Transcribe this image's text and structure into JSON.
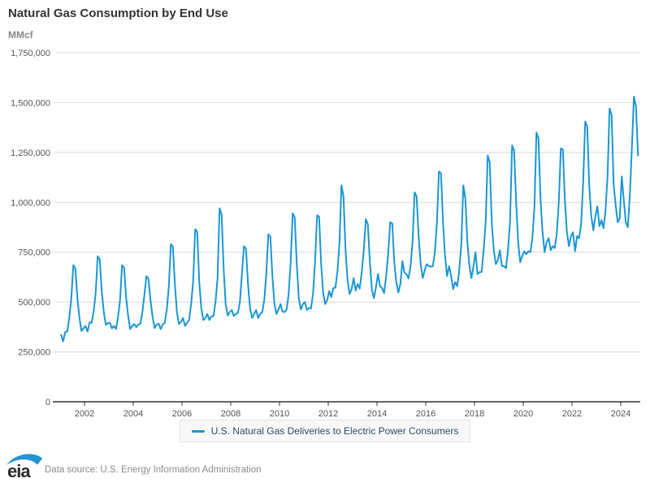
{
  "header": {
    "title": "Natural Gas Consumption by End Use",
    "units_label": "MMcf"
  },
  "legend": {
    "series_label": "U.S. Natural Gas Deliveries to Electric Power Consumers"
  },
  "footer": {
    "logo_text": "eia",
    "source_text": "Data source: U.S. Energy Information Administration"
  },
  "colors": {
    "series_line": "#1a96d4",
    "grid_line": "#d9d9d9",
    "zero_axis_line": "#333333",
    "tick_mark": "#333333",
    "tick_text": "#555555",
    "title_text": "#333333",
    "units_text": "#8a8a8a",
    "legend_text": "#32495e",
    "legend_bg": "#f8f8f8",
    "legend_border": "#e2e2e2",
    "logo_swoosh": "#2196d3",
    "logo_text_color": "#2b2b2b"
  },
  "chart_data": {
    "type": "line",
    "title": "Natural Gas Consumption by End Use",
    "xlabel": "",
    "ylabel": "MMcf",
    "ylim": [
      0,
      1750000
    ],
    "grid": true,
    "legend_position": "bottom",
    "y_ticks": [
      0,
      250000,
      500000,
      750000,
      1000000,
      1250000,
      1500000,
      1750000
    ],
    "y_tick_labels": [
      "0",
      "250,000",
      "500,000",
      "750,000",
      "1,000,000",
      "1,250,000",
      "1,500,000",
      "1,750,000"
    ],
    "x_tick_years": [
      2002,
      2004,
      2006,
      2008,
      2010,
      2012,
      2014,
      2016,
      2018,
      2020,
      2022,
      2024
    ],
    "x_tick_labels": [
      "2002",
      "2004",
      "2006",
      "2008",
      "2010",
      "2012",
      "2014",
      "2016",
      "2018",
      "2020",
      "2022",
      "2024"
    ],
    "x_range": {
      "start": "2001-01",
      "end": "2024-09",
      "frequency": "monthly"
    },
    "series": [
      {
        "name": "U.S. Natural Gas Deliveries to Electric Power Consumers",
        "color": "#1a96d4",
        "values": [
          335000,
          303000,
          350000,
          352000,
          420000,
          518000,
          685000,
          668000,
          520000,
          422000,
          355000,
          368000,
          380000,
          352000,
          398000,
          396000,
          452000,
          545000,
          730000,
          714000,
          552000,
          450000,
          385000,
          395000,
          396000,
          368000,
          380000,
          365000,
          424000,
          508000,
          685000,
          672000,
          520000,
          430000,
          365000,
          380000,
          390000,
          374000,
          388000,
          390000,
          448000,
          538000,
          630000,
          616000,
          508000,
          428000,
          370000,
          386000,
          392000,
          364000,
          388000,
          396000,
          460000,
          575000,
          790000,
          778000,
          590000,
          450000,
          390000,
          400000,
          420000,
          380000,
          396000,
          410000,
          490000,
          605000,
          865000,
          852000,
          600000,
          470000,
          410000,
          420000,
          440000,
          410000,
          428000,
          430000,
          500000,
          620000,
          970000,
          940000,
          668000,
          490000,
          432000,
          450000,
          460000,
          430000,
          440000,
          445000,
          500000,
          640000,
          780000,
          768000,
          590000,
          470000,
          420000,
          440000,
          460000,
          420000,
          440000,
          450000,
          510000,
          640000,
          840000,
          828000,
          630000,
          490000,
          440000,
          462000,
          490000,
          452000,
          450000,
          462000,
          540000,
          700000,
          945000,
          924000,
          690000,
          520000,
          462000,
          490000,
          500000,
          460000,
          470000,
          468000,
          540000,
          700000,
          935000,
          928000,
          690000,
          545000,
          490000,
          510000,
          555000,
          525000,
          570000,
          572000,
          650000,
          792000,
          1085000,
          1030000,
          762000,
          610000,
          540000,
          565000,
          620000,
          558000,
          590000,
          568000,
          650000,
          760000,
          915000,
          890000,
          700000,
          560000,
          520000,
          575000,
          640000,
          580000,
          570000,
          545000,
          630000,
          740000,
          900000,
          895000,
          700000,
          600000,
          548000,
          590000,
          705000,
          648000,
          640000,
          618000,
          680000,
          800000,
          1050000,
          1030000,
          830000,
          690000,
          620000,
          660000,
          690000,
          680000,
          678000,
          680000,
          750000,
          900000,
          1155000,
          1145000,
          900000,
          730000,
          630000,
          680000,
          630000,
          565000,
          600000,
          580000,
          660000,
          790000,
          1085000,
          1020000,
          800000,
          680000,
          620000,
          680000,
          750000,
          640000,
          650000,
          650000,
          760000,
          900000,
          1235000,
          1200000,
          900000,
          760000,
          690000,
          710000,
          760000,
          680000,
          680000,
          670000,
          760000,
          905000,
          1285000,
          1260000,
          1000000,
          800000,
          700000,
          730000,
          755000,
          740000,
          755000,
          750000,
          820000,
          975000,
          1350000,
          1320000,
          1015000,
          850000,
          750000,
          800000,
          820000,
          760000,
          780000,
          770000,
          840000,
          1000000,
          1270000,
          1265000,
          1010000,
          850000,
          780000,
          830000,
          850000,
          755000,
          830000,
          820000,
          890000,
          1100000,
          1405000,
          1380000,
          1080000,
          930000,
          860000,
          930000,
          980000,
          880000,
          910000,
          870000,
          960000,
          1130000,
          1470000,
          1440000,
          1090000,
          985000,
          900000,
          920000,
          1130000,
          1010000,
          900000,
          875000,
          1040000,
          1280000,
          1530000,
          1480000,
          1235000
        ]
      }
    ]
  }
}
